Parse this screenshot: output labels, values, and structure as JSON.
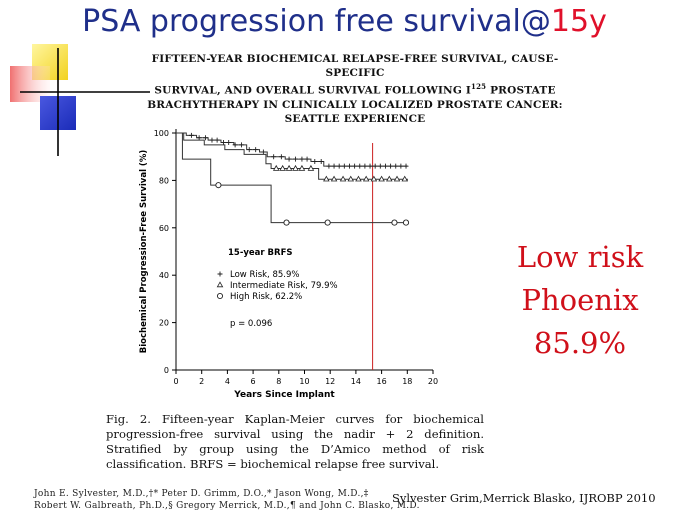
{
  "slide": {
    "title_main": "PSA progression free survival@",
    "title_accent": "15y",
    "accent_color": "#e0102a",
    "title_color": "#1f2f8a"
  },
  "paper_title": {
    "line1": "FIFTEEN-YEAR BIOCHEMICAL RELAPSE-FREE SURVIVAL, CAUSE-SPECIFIC",
    "line2_pre": "SURVIVAL, AND OVERALL SURVIVAL FOLLOWING I",
    "line2_sup": "125",
    "line2_post": " PROSTATE",
    "line3": "BRACHYTHERAPY IN CLINICALLY LOCALIZED PROSTATE CANCER:",
    "line4": "SEATTLE EXPERIENCE"
  },
  "chart_data": {
    "type": "line",
    "title": "15-year BRFS",
    "xlabel": "Years Since Implant",
    "ylabel": "Biochemical Progression-Free Survival (%)",
    "xlim": [
      0,
      20
    ],
    "ylim": [
      0,
      100
    ],
    "x_ticks": [
      0,
      2,
      4,
      6,
      8,
      10,
      12,
      14,
      16,
      18,
      20
    ],
    "y_ticks": [
      0,
      20,
      40,
      60,
      80,
      100
    ],
    "grid": false,
    "legend_position": "lower-left",
    "series": [
      {
        "name": "Low Risk, 85.9%",
        "marker": "+",
        "steps": [
          [
            0,
            100
          ],
          [
            0.8,
            99
          ],
          [
            1.6,
            98
          ],
          [
            2.5,
            97
          ],
          [
            3.5,
            96
          ],
          [
            4.5,
            95
          ],
          [
            5.5,
            93
          ],
          [
            6.5,
            92
          ],
          [
            7.1,
            90
          ],
          [
            8.5,
            89
          ],
          [
            10.5,
            88
          ],
          [
            11.5,
            86
          ],
          [
            18,
            85.9
          ]
        ],
        "censor_x": [
          1.2,
          1.8,
          2.3,
          2.8,
          3.2,
          3.7,
          4.1,
          4.6,
          5.1,
          5.7,
          6.2,
          6.8,
          7.6,
          8.2,
          8.8,
          9.3,
          9.8,
          10.2,
          10.8,
          11.3,
          11.9,
          12.3,
          12.7,
          13.1,
          13.5,
          13.9,
          14.3,
          14.7,
          15.1,
          15.5,
          15.9,
          16.3,
          16.7,
          17.1,
          17.5,
          17.9
        ]
      },
      {
        "name": "Intermediate Risk, 79.9%",
        "marker": "triangle",
        "steps": [
          [
            0,
            100
          ],
          [
            0.6,
            97
          ],
          [
            2.2,
            95
          ],
          [
            3.8,
            93
          ],
          [
            5.3,
            91
          ],
          [
            7.0,
            87
          ],
          [
            7.4,
            85
          ],
          [
            8.6,
            85
          ],
          [
            11.1,
            80.5
          ],
          [
            18,
            79.9
          ]
        ],
        "censor_x": [
          7.8,
          8.3,
          8.8,
          9.3,
          9.8,
          10.5,
          11.7,
          12.3,
          13.0,
          13.6,
          14.2,
          14.8,
          15.4,
          16.0,
          16.6,
          17.2,
          17.8
        ]
      },
      {
        "name": "High Risk, 62.2%",
        "marker": "circle",
        "steps": [
          [
            0,
            100
          ],
          [
            0.5,
            89
          ],
          [
            2.6,
            89
          ],
          [
            2.7,
            78
          ],
          [
            7.3,
            78
          ],
          [
            7.4,
            62.2
          ],
          [
            18,
            62.2
          ]
        ],
        "censor_x": [
          3.3,
          8.6,
          11.8,
          17.0,
          17.9
        ]
      }
    ],
    "annotation": "p = 0.096",
    "reference_line": {
      "x": 15.3,
      "color": "#cc2020"
    }
  },
  "figure_caption": "Fig. 2. Fifteen-year Kaplan-Meier curves for biochemical progression-free survival using the nadir + 2 definition. Stratified by group using the D’Amico method of risk classification. BRFS = biochemical relapse free survival.",
  "authors": {
    "line1": "John E. Sylvester, M.D.,†* Peter D. Grimm, D.O.,* Jason Wong, M.D.,‡",
    "line2": "Robert W. Galbreath, Ph.D.,§ Gregory Merrick, M.D.,¶ and John C. Blasko, M.D."
  },
  "citation": "Sylvester Grim,Merrick Blasko, IJROBP 2010",
  "callout": {
    "line1": "Low risk",
    "line2": "Phoenix",
    "line3": "85.9%",
    "color": "#d0101a"
  }
}
